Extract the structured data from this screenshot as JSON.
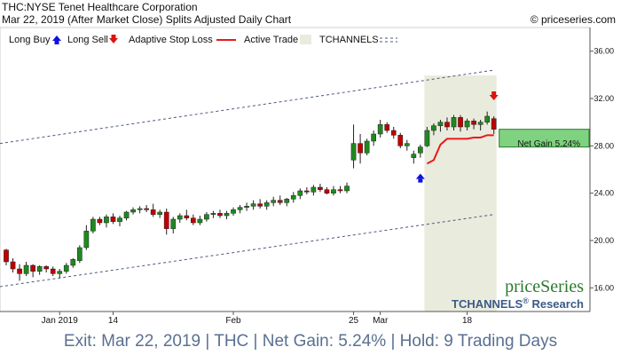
{
  "header": {
    "line1": "THC:NYSE Tenet Healthcare Corporation",
    "line2": "Mar 22, 2019 (After Market Close)  Splits Adjusted Daily Chart",
    "copyright": "© priceseries.com"
  },
  "legend": {
    "long_buy": "Long Buy",
    "long_sell": "Long Sell",
    "adaptive_stop": "Adaptive Stop Loss",
    "active_trade": "Active Trade",
    "tchannels": "TCHANNELS"
  },
  "watermark": {
    "brand": "priceSeries",
    "research": "TCHANNELS",
    "reg": "®",
    "research_suffix": " Research"
  },
  "net_gain_label": "Net Gain 5.24%",
  "footer": "Exit: Mar 22, 2019 | THC | Net Gain: 5.24% | Hold: 9 Trading Days",
  "colors": {
    "up": "#1e8a1e",
    "down": "#c00000",
    "stop": "#e8191c",
    "active_bg": "#e9ebdd",
    "gain_box": "#7fd27f",
    "channel": "#4a5a78",
    "buy_arrow": "#1010e0",
    "sell_arrow": "#e01010"
  },
  "chart_data": {
    "type": "candlestick",
    "ylim": [
      14,
      38
    ],
    "yticks": [
      16,
      20,
      24,
      28,
      32,
      36
    ],
    "ytick_labels": [
      "16.00",
      "20.00",
      "24.00",
      "28.00",
      "32.00",
      "36.00"
    ],
    "xtick_labels": [
      {
        "index": 8,
        "label": "Jan 2019"
      },
      {
        "index": 16,
        "label": "14"
      },
      {
        "index": 34,
        "label": "Feb"
      },
      {
        "index": 52,
        "label": "25"
      },
      {
        "index": 56,
        "label": "Mar"
      },
      {
        "index": 69,
        "label": "18"
      }
    ],
    "ohlc": [
      [
        19.2,
        19.3,
        17.9,
        18.2
      ],
      [
        18.2,
        18.5,
        17.3,
        17.6
      ],
      [
        17.6,
        18.0,
        16.6,
        17.2
      ],
      [
        17.2,
        18.2,
        17.0,
        17.9
      ],
      [
        17.9,
        18.0,
        16.9,
        17.4
      ],
      [
        17.4,
        17.9,
        17.1,
        17.8
      ],
      [
        17.8,
        17.9,
        17.3,
        17.6
      ],
      [
        17.6,
        17.8,
        17.0,
        17.2
      ],
      [
        17.2,
        17.6,
        16.8,
        17.4
      ],
      [
        17.4,
        18.1,
        17.2,
        17.9
      ],
      [
        17.9,
        18.5,
        17.7,
        18.4
      ],
      [
        18.3,
        19.6,
        18.1,
        19.4
      ],
      [
        19.4,
        21.3,
        19.2,
        20.8
      ],
      [
        20.8,
        22.0,
        20.6,
        21.8
      ],
      [
        21.8,
        22.0,
        21.3,
        21.5
      ],
      [
        21.5,
        22.2,
        21.1,
        22.0
      ],
      [
        22.0,
        22.3,
        21.4,
        21.6
      ],
      [
        21.6,
        22.1,
        21.2,
        21.9
      ],
      [
        21.9,
        22.5,
        21.7,
        22.4
      ],
      [
        22.4,
        22.8,
        22.2,
        22.6
      ],
      [
        22.6,
        22.9,
        22.3,
        22.7
      ],
      [
        22.7,
        23.0,
        22.4,
        22.6
      ],
      [
        22.6,
        23.1,
        22.0,
        22.2
      ],
      [
        22.2,
        22.6,
        21.9,
        22.4
      ],
      [
        22.4,
        22.7,
        20.5,
        21.0
      ],
      [
        21.0,
        22.0,
        20.6,
        21.8
      ],
      [
        21.8,
        22.3,
        21.5,
        22.1
      ],
      [
        22.1,
        22.6,
        21.7,
        21.9
      ],
      [
        21.9,
        22.2,
        21.3,
        21.5
      ],
      [
        21.5,
        22.1,
        21.3,
        21.8
      ],
      [
        21.8,
        22.4,
        21.6,
        22.2
      ],
      [
        22.2,
        22.5,
        21.9,
        22.3
      ],
      [
        22.3,
        22.6,
        21.9,
        22.1
      ],
      [
        22.1,
        22.5,
        21.8,
        22.3
      ],
      [
        22.3,
        22.8,
        22.1,
        22.6
      ],
      [
        22.6,
        23.0,
        22.3,
        22.8
      ],
      [
        22.8,
        23.2,
        22.5,
        22.9
      ],
      [
        22.9,
        23.4,
        22.6,
        23.1
      ],
      [
        23.1,
        23.5,
        22.7,
        22.9
      ],
      [
        22.9,
        23.4,
        22.6,
        23.2
      ],
      [
        23.2,
        23.7,
        22.9,
        23.4
      ],
      [
        23.4,
        23.8,
        23.0,
        23.2
      ],
      [
        23.2,
        23.6,
        22.9,
        23.5
      ],
      [
        23.5,
        24.1,
        23.2,
        23.8
      ],
      [
        23.8,
        24.4,
        23.5,
        24.2
      ],
      [
        24.2,
        24.5,
        23.9,
        24.1
      ],
      [
        24.1,
        24.7,
        23.8,
        24.5
      ],
      [
        24.5,
        24.8,
        24.1,
        24.3
      ],
      [
        24.3,
        24.5,
        23.9,
        24.0
      ],
      [
        24.0,
        24.6,
        23.8,
        24.3
      ],
      [
        24.3,
        24.6,
        24.0,
        24.2
      ],
      [
        24.2,
        24.9,
        24.0,
        24.6
      ],
      [
        26.8,
        29.8,
        26.1,
        28.2
      ],
      [
        28.2,
        29.0,
        26.5,
        27.4
      ],
      [
        27.4,
        28.6,
        27.2,
        28.4
      ],
      [
        28.4,
        29.3,
        28.0,
        29.0
      ],
      [
        29.0,
        30.2,
        28.7,
        29.8
      ],
      [
        29.8,
        30.0,
        29.1,
        29.3
      ],
      [
        29.3,
        29.6,
        28.6,
        28.9
      ],
      [
        28.9,
        29.1,
        27.8,
        28.0
      ],
      [
        28.0,
        28.5,
        27.6,
        28.2
      ],
      [
        27.0,
        27.6,
        26.5,
        27.3
      ],
      [
        27.4,
        28.1,
        27.0,
        27.9
      ],
      [
        28.0,
        29.6,
        27.9,
        29.3
      ],
      [
        29.3,
        29.9,
        28.9,
        29.7
      ],
      [
        29.7,
        30.2,
        29.2,
        30.0
      ],
      [
        30.0,
        30.4,
        29.3,
        29.6
      ],
      [
        29.6,
        30.6,
        29.3,
        30.4
      ],
      [
        30.4,
        30.6,
        29.2,
        29.6
      ],
      [
        29.6,
        30.3,
        29.3,
        30.1
      ],
      [
        30.1,
        30.3,
        29.4,
        29.8
      ],
      [
        29.8,
        30.2,
        29.3,
        30.0
      ],
      [
        30.0,
        30.9,
        29.8,
        30.5
      ],
      [
        30.3,
        30.5,
        29.0,
        29.4
      ]
    ],
    "active_trade_range": [
      63,
      73
    ],
    "adaptive_stop": {
      "start_index": 63,
      "values": [
        26.5,
        26.8,
        28.1,
        28.6,
        28.6,
        28.6,
        28.6,
        28.7,
        28.7,
        28.9,
        28.9
      ]
    },
    "channel_upper": {
      "start": 28.2,
      "end": 34.4
    },
    "channel_lower": {
      "start": 16.1,
      "end": 22.2
    },
    "long_buy": {
      "index": 62,
      "price": 25.2
    },
    "long_sell": {
      "index": 73,
      "price": 32.3
    },
    "gain_box": {
      "from": 27.9,
      "to": 29.4
    }
  }
}
